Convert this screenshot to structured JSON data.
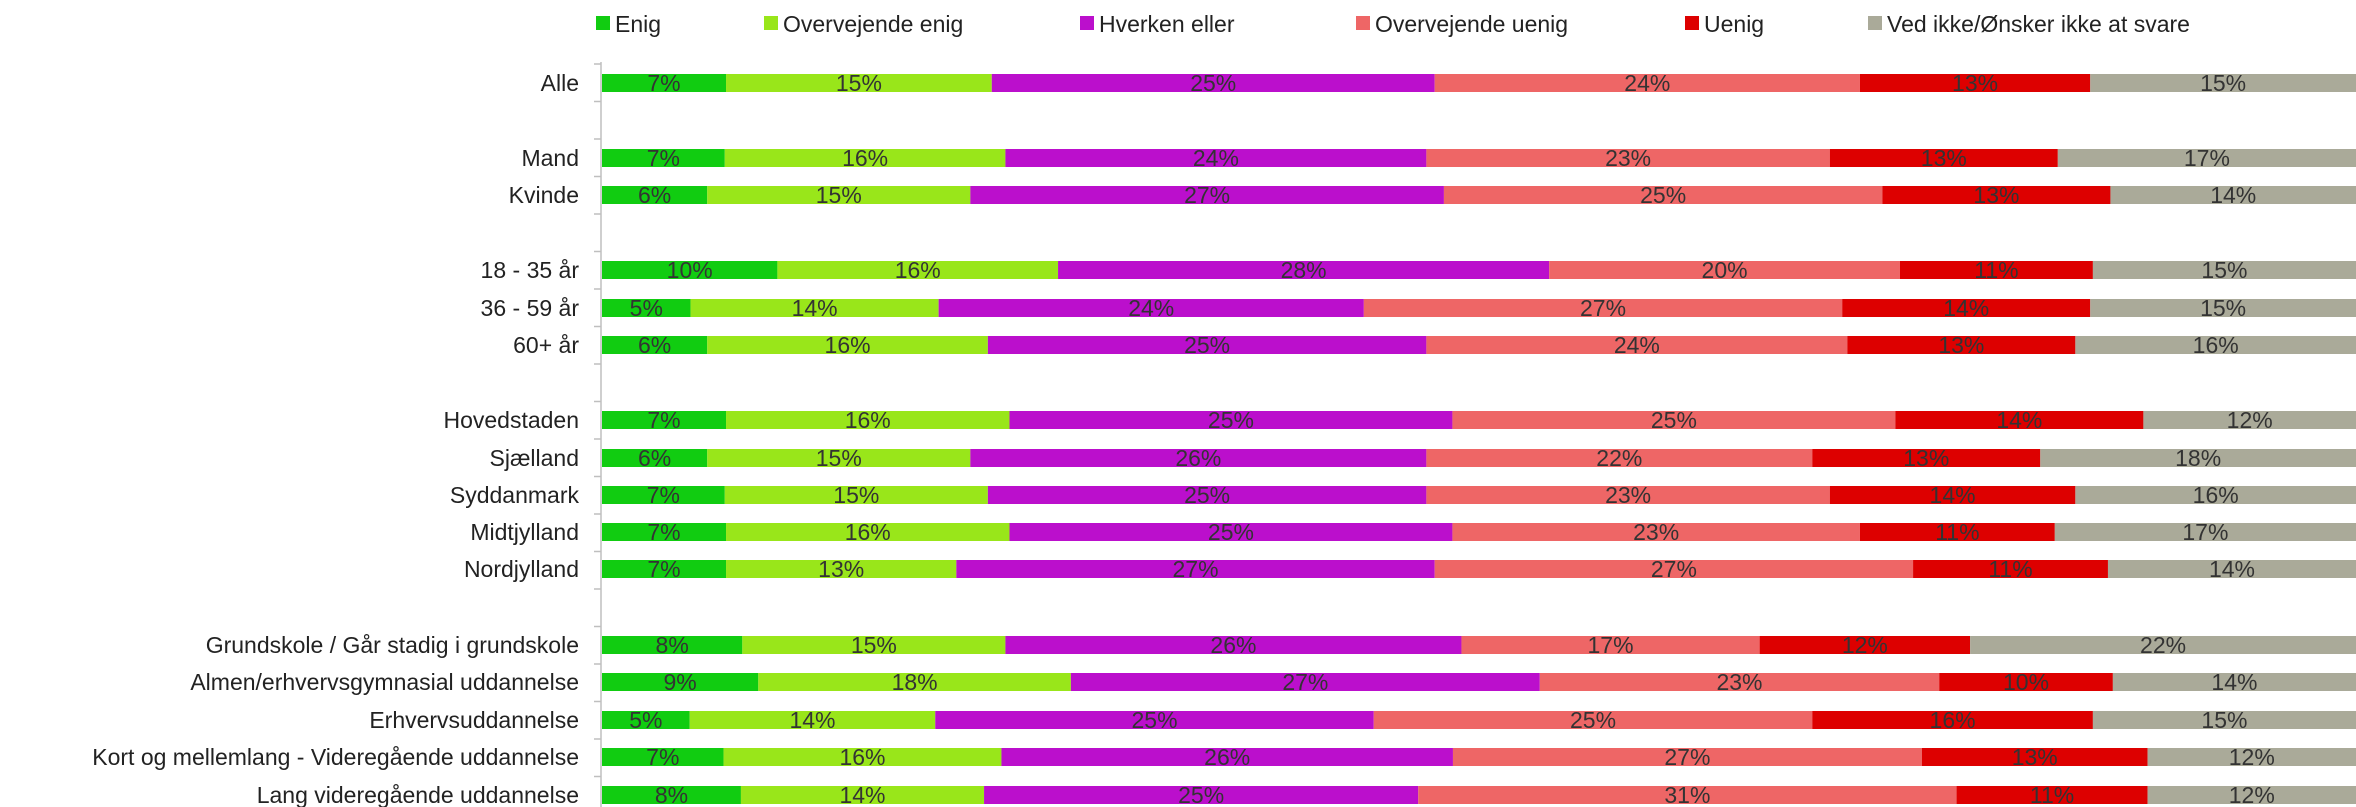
{
  "chart_data": {
    "type": "bar",
    "orientation": "horizontal",
    "stacked": "percent",
    "title": "",
    "xlabel": "",
    "ylabel": "",
    "legend_position": "top",
    "grid": false,
    "series": [
      {
        "name": "Enig",
        "color": "#11cc11",
        "values": [
          7,
          7,
          6,
          10,
          5,
          6,
          7,
          6,
          7,
          7,
          7,
          8,
          9,
          5,
          7,
          8
        ]
      },
      {
        "name": "Overvejende enig",
        "color": "#99e61a",
        "values": [
          15,
          16,
          15,
          16,
          14,
          16,
          16,
          15,
          15,
          16,
          13,
          15,
          18,
          14,
          16,
          14
        ]
      },
      {
        "name": "Hverken eller",
        "color": "#bb0fcc",
        "values": [
          25,
          24,
          27,
          28,
          24,
          25,
          25,
          26,
          25,
          25,
          27,
          26,
          27,
          25,
          26,
          25
        ]
      },
      {
        "name": "Overvejende uenig",
        "color": "#ee6666",
        "values": [
          24,
          23,
          25,
          20,
          27,
          24,
          25,
          22,
          23,
          23,
          27,
          17,
          23,
          25,
          27,
          31
        ]
      },
      {
        "name": "Uenig",
        "color": "#dd0000",
        "values": [
          13,
          13,
          13,
          11,
          14,
          13,
          14,
          13,
          14,
          11,
          11,
          12,
          10,
          16,
          13,
          11
        ]
      },
      {
        "name": "Ved ikke/Ønsker ikke at svare",
        "color": "#aaaa99",
        "values": [
          15,
          17,
          14,
          15,
          15,
          16,
          12,
          18,
          16,
          17,
          14,
          22,
          14,
          15,
          12,
          12
        ]
      }
    ],
    "categories": [
      "Alle",
      "Mand",
      "Kvinde",
      "18 - 35 år",
      "36 - 59 år",
      "60+ år",
      "Hovedstaden",
      "Sjælland",
      "Syddanmark",
      "Midtjylland",
      "Nordjylland",
      "Grundskole / Går stadig i grundskole",
      "Almen/erhvervsgymnasial uddannelse",
      "Erhvervsuddannelse",
      "Kort og mellemlang - Videregående uddannelse",
      "Lang videregående uddannelse"
    ]
  }
}
